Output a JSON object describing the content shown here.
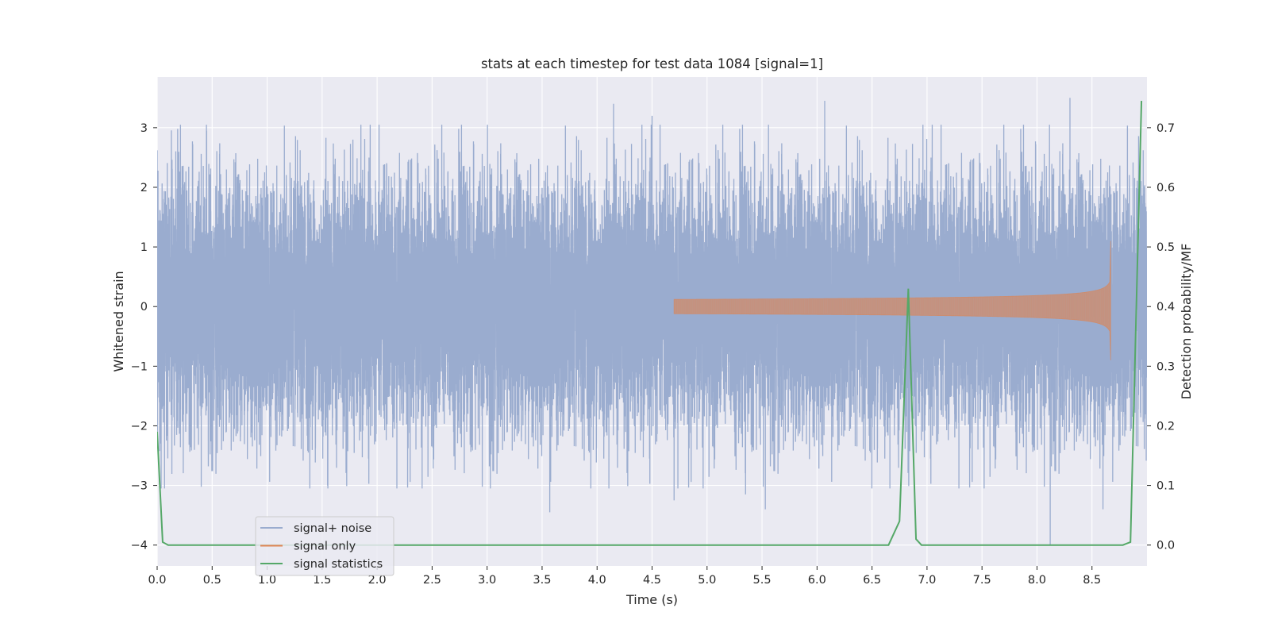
{
  "chart_data": {
    "type": "line",
    "title": "stats at each timestep for test data 1084 [signal=1]",
    "xlabel": "Time (s)",
    "ylabel": "Whitened strain",
    "y2label": "Detection probability/MF",
    "xlim": [
      0.0,
      9.0
    ],
    "ylim": [
      -4.35,
      3.85
    ],
    "y2lim": [
      -0.035,
      0.785
    ],
    "xticks": [
      "0.0",
      "0.5",
      "1.0",
      "1.5",
      "2.0",
      "2.5",
      "3.0",
      "3.5",
      "4.0",
      "4.5",
      "5.0",
      "5.5",
      "6.0",
      "6.5",
      "7.0",
      "7.5",
      "8.0",
      "8.5"
    ],
    "yticks": [
      "3",
      "2",
      "1",
      "0",
      "−1",
      "−2",
      "−3",
      "−4"
    ],
    "y2ticks": [
      "0.7",
      "0.6",
      "0.5",
      "0.4",
      "0.3",
      "0.2",
      "0.1",
      "0.0"
    ],
    "grid": true,
    "legend_position": "lower-left",
    "colors": {
      "background": "#eaeaf2",
      "grid": "#ffffff",
      "noise": "#9aaccf",
      "signal": "#dd8452",
      "stats": "#55a868"
    },
    "series": [
      {
        "name": "signal+ noise",
        "kind": "noise",
        "sample_rate_hz": 2048,
        "x_range": [
          0.0,
          9.0
        ],
        "approx_std": 1.0,
        "peaks": [
          {
            "x": 4.15,
            "y": 3.4
          },
          {
            "x": 4.5,
            "y": 3.2
          },
          {
            "x": 6.07,
            "y": 3.45
          },
          {
            "x": 8.3,
            "y": 3.5
          },
          {
            "x": 0.45,
            "y": 2.95
          },
          {
            "x": 1.78,
            "y": 2.8
          },
          {
            "x": 3.57,
            "y": -3.45
          },
          {
            "x": 5.53,
            "y": -3.4
          },
          {
            "x": 8.12,
            "y": -4.0
          },
          {
            "x": 4.7,
            "y": -3.25
          },
          {
            "x": 1.55,
            "y": -3.0
          },
          {
            "x": 3.03,
            "y": -3.05
          },
          {
            "x": 8.6,
            "y": -3.4
          },
          {
            "x": 5.35,
            "y": -3.15
          }
        ]
      },
      {
        "name": "signal only",
        "kind": "chirp",
        "x_start": 4.7,
        "x_merger": 8.67,
        "amplitude_start": 0.01,
        "amplitude_end": 0.85,
        "peak_max": 1.1,
        "peak_min": -0.9
      },
      {
        "name": "signal statistics",
        "kind": "line",
        "axis": "right",
        "x": [
          0.0,
          0.05,
          0.1,
          0.15,
          6.65,
          6.75,
          6.83,
          6.9,
          6.95,
          8.78,
          8.85,
          8.95
        ],
        "y": [
          0.19,
          0.005,
          0.0,
          0.0,
          0.0,
          0.04,
          0.43,
          0.01,
          0.0,
          0.0,
          0.005,
          0.745
        ]
      }
    ]
  }
}
